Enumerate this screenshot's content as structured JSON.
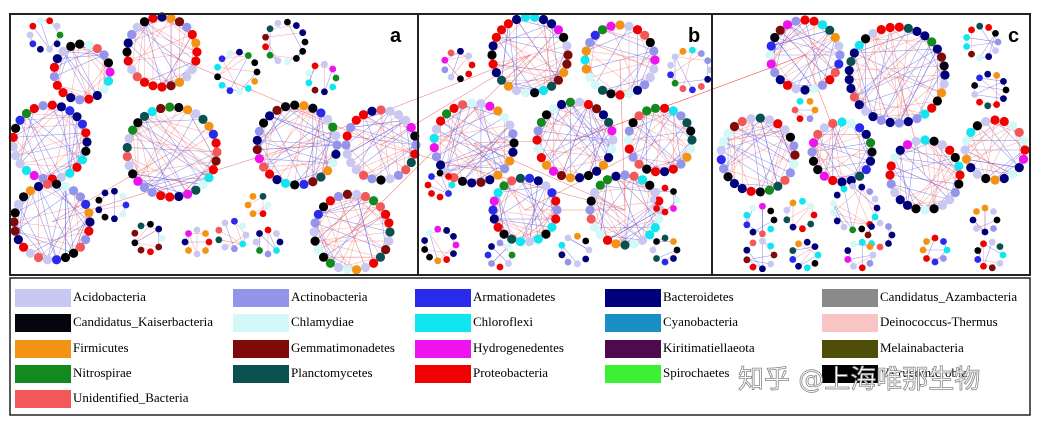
{
  "panels": [
    {
      "label": "a"
    },
    {
      "label": "b"
    },
    {
      "label": "c"
    }
  ],
  "legend": [
    {
      "name": "Acidobacteria",
      "color": "#c8c8f2"
    },
    {
      "name": "Actinobacteria",
      "color": "#9494ea"
    },
    {
      "name": "Armationadetes",
      "color": "#2a2aec"
    },
    {
      "name": "Bacteroidetes",
      "color": "#00007a"
    },
    {
      "name": "Candidatus_Azambacteria",
      "color": "#8a8a8a"
    },
    {
      "name": "Candidatus_Kaiserbacteria",
      "color": "#05050f"
    },
    {
      "name": "Chlamydiae",
      "color": "#d2f8f8"
    },
    {
      "name": "Chloroflexi",
      "color": "#10e6f0"
    },
    {
      "name": "Cyanobacteria",
      "color": "#1890c6"
    },
    {
      "name": "Deinococcus-Thermus",
      "color": "#f8c4c4"
    },
    {
      "name": "Firmicutes",
      "color": "#f49214"
    },
    {
      "name": "Gemmatimonadetes",
      "color": "#7e0a0a"
    },
    {
      "name": "Hydrogenedentes",
      "color": "#ee12ee"
    },
    {
      "name": "Kiritimatiellaeota",
      "color": "#4e0a4e"
    },
    {
      "name": "Melainabacteria",
      "color": "#4e4e08"
    },
    {
      "name": "Nitrospirae",
      "color": "#138a1e"
    },
    {
      "name": "Planctomycetes",
      "color": "#0a5050"
    },
    {
      "name": "Proteobacteria",
      "color": "#f00000"
    },
    {
      "name": "Spirochaetes",
      "color": "#3cf034"
    },
    {
      "name": "Verrucomicrobia",
      "color": "#000000"
    },
    {
      "name": "Unidentified_Bacteria",
      "color": "#f25858"
    }
  ],
  "watermark": "知乎 @上海唯那生物"
}
